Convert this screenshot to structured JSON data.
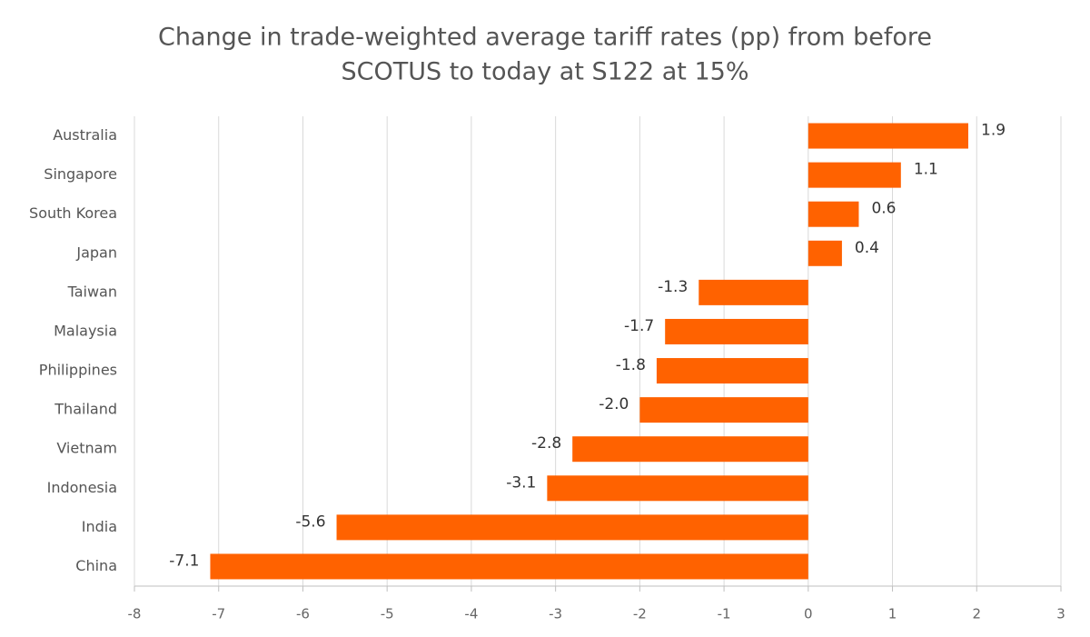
{
  "chart_data": {
    "type": "barh",
    "title": [
      "Change in trade-weighted average tariff rates (pp) from before",
      "SCOTUS to today at S122 at 15%"
    ],
    "categories": [
      "Australia",
      "Singapore",
      "South Korea",
      "Japan",
      "Taiwan",
      "Malaysia",
      "Philippines",
      "Thailand",
      "Vietnam",
      "Indonesia",
      "India",
      "China"
    ],
    "values": [
      1.9,
      1.1,
      0.6,
      0.4,
      -1.3,
      -1.7,
      -1.8,
      -2,
      -2.8,
      -3.1,
      -5.6,
      -7.1
    ],
    "value_labels": [
      "1.9",
      "1.1",
      "0.6",
      "0.4",
      "-1.3",
      "-1.7",
      "-1.8",
      "-2.0",
      "-2.8",
      "-3.1",
      "-5.6",
      "-7.1"
    ],
    "color": "#ff6200",
    "xlim": [
      -8,
      3
    ],
    "xticks": [
      -8,
      -7,
      -6,
      -5,
      -4,
      -3,
      -2,
      -1,
      0,
      1,
      2,
      3
    ],
    "grid": true
  }
}
